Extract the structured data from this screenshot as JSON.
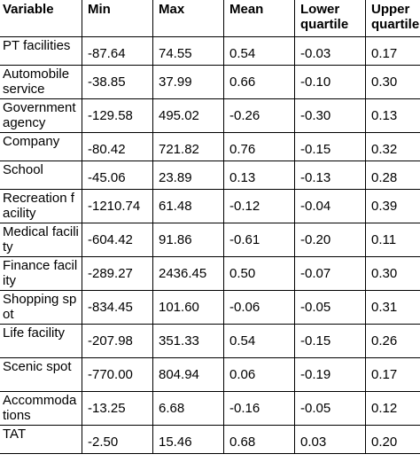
{
  "table": {
    "headers": [
      "Variable",
      "Min",
      "Max",
      "Mean",
      "Lower quartile",
      "Upper quartile"
    ],
    "rows": [
      {
        "variable": "PT facilities",
        "min": "-87.64",
        "max": "74.55",
        "mean": "0.54",
        "lower": "-0.03",
        "upper": "0.17"
      },
      {
        "variable": "Automobile service",
        "min": "-38.85",
        "max": "37.99",
        "mean": "0.66",
        "lower": "-0.10",
        "upper": "0.30"
      },
      {
        "variable": "Government agency",
        "min": "-129.58",
        "max": "495.02",
        "mean": "-0.26",
        "lower": "-0.30",
        "upper": "0.13"
      },
      {
        "variable": "Company",
        "min": "-80.42",
        "max": "721.82",
        "mean": "0.76",
        "lower": "-0.15",
        "upper": "0.32"
      },
      {
        "variable": "School",
        "min": "-45.06",
        "max": "23.89",
        "mean": "0.13",
        "lower": "-0.13",
        "upper": "0.28"
      },
      {
        "variable": "Recreation facility",
        "min": "-1210.74",
        "max": "61.48",
        "mean": "-0.12",
        "lower": "-0.04",
        "upper": "0.39"
      },
      {
        "variable": "Medical facility",
        "min": "-604.42",
        "max": "91.86",
        "mean": "-0.61",
        "lower": "-0.20",
        "upper": "0.11"
      },
      {
        "variable": "Finance facility",
        "min": "-289.27",
        "max": "2436.45",
        "mean": "0.50",
        "lower": "-0.07",
        "upper": "0.30"
      },
      {
        "variable": "Shopping spot",
        "min": "-834.45",
        "max": "101.60",
        "mean": "-0.06",
        "lower": "-0.05",
        "upper": "0.31"
      },
      {
        "variable": "Life facility",
        "min": "-207.98",
        "max": "351.33",
        "mean": "0.54",
        "lower": "-0.15",
        "upper": "0.26"
      },
      {
        "variable": "Scenic spot",
        "min": "-770.00",
        "max": "804.94",
        "mean": "0.06",
        "lower": "-0.19",
        "upper": "0.17"
      },
      {
        "variable": "Accommodations",
        "min": "-13.25",
        "max": "6.68",
        "mean": "-0.16",
        "lower": "-0.05",
        "upper": "0.12"
      },
      {
        "variable": "TAT",
        "min": "-2.50",
        "max": "15.46",
        "mean": "0.68",
        "lower": "0.03",
        "upper": "0.20"
      }
    ]
  }
}
